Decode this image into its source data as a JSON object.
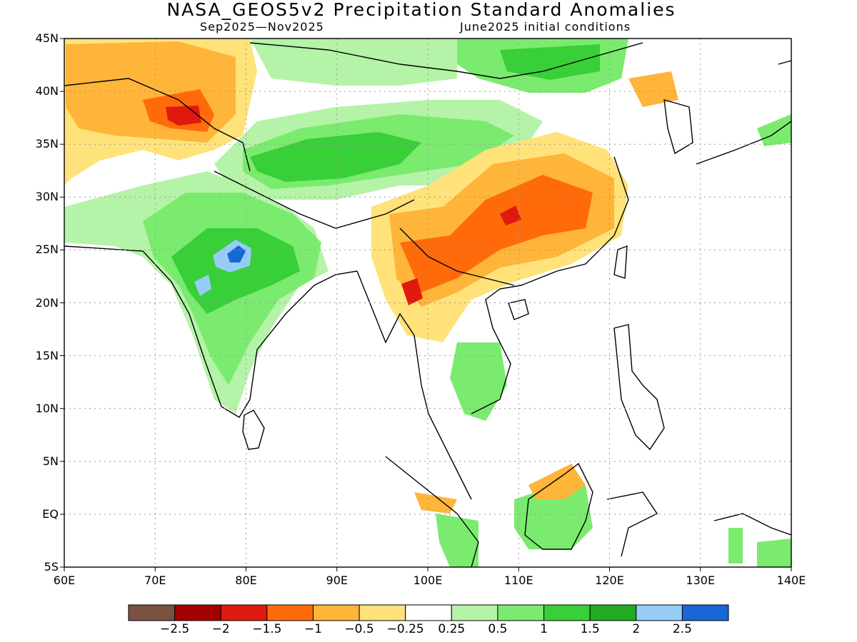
{
  "header": {
    "title": "NASA_GEOS5v2 Precipitation Standard Anomalies",
    "period": "Sep2025—Nov2025",
    "initial_conditions": "June2025 initial conditions"
  },
  "axes": {
    "lat_labels": [
      "45N",
      "40N",
      "35N",
      "30N",
      "25N",
      "20N",
      "15N",
      "10N",
      "5N",
      "EQ",
      "5S"
    ],
    "lat_values": [
      45,
      40,
      35,
      30,
      25,
      20,
      15,
      10,
      5,
      0,
      -5
    ],
    "lon_labels": [
      "60E",
      "70E",
      "80E",
      "90E",
      "100E",
      "110E",
      "120E",
      "130E",
      "140E"
    ],
    "lon_values": [
      60,
      70,
      80,
      90,
      100,
      110,
      120,
      130,
      140
    ],
    "lon_range": [
      60,
      140
    ],
    "lat_range": [
      -5,
      45
    ],
    "grid": "dotted"
  },
  "colorbar": {
    "labels": [
      "−2.5",
      "−2",
      "−1.5",
      "−1",
      "−0.5",
      "−0.25",
      "0.25",
      "0.5",
      "1",
      "1.5",
      "2",
      "2.5"
    ],
    "colors": [
      "#7b5142",
      "#a30000",
      "#e0190f",
      "#ff6b0a",
      "#ffb43a",
      "#ffe27a",
      "#ffffff",
      "#b5f3a8",
      "#7aeb6e",
      "#38cf38",
      "#20ab20",
      "#96cdf8",
      "#1867d6"
    ]
  },
  "field": {
    "colors": {
      "dry_light": "#ffe27a",
      "dry_mod": "#ffb43a",
      "dry_strong": "#ff6b0a",
      "dry_vstrong": "#e0190f",
      "wet_light": "#b5f3a8",
      "wet_mod": "#7aeb6e",
      "wet_strong": "#38cf38",
      "wet_vstrong": "#20ab20",
      "wet_extreme": "#96cdf8",
      "wet_max": "#1867d6"
    }
  }
}
